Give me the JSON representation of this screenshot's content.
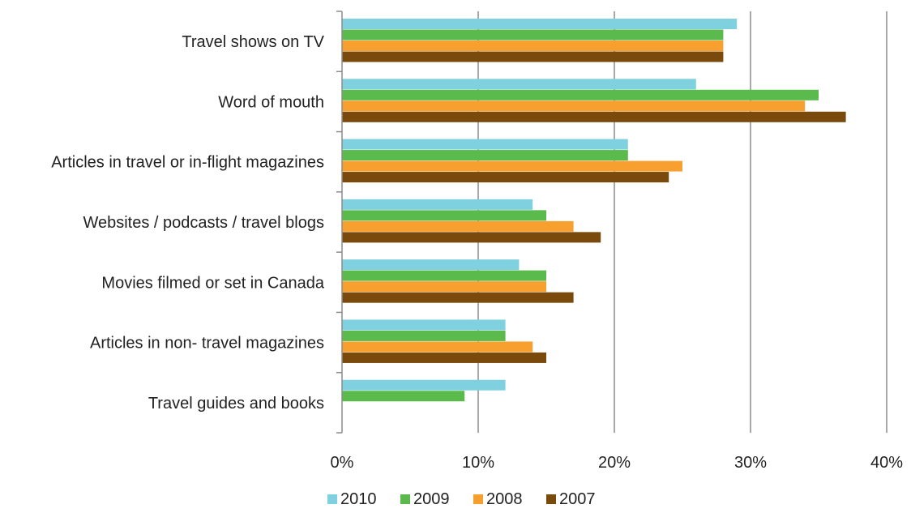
{
  "chart_data": {
    "type": "bar",
    "orientation": "horizontal",
    "categories": [
      "Travel shows on TV",
      "Word of mouth",
      "Articles in travel or in-flight magazines",
      "Websites / podcasts / travel blogs",
      "Movies filmed or set in Canada",
      "Articles in non- travel magazines",
      "Travel guides and books"
    ],
    "series": [
      {
        "name": "2010",
        "color": "#7fd1e0",
        "values": [
          29,
          26,
          21,
          14,
          13,
          12,
          12
        ]
      },
      {
        "name": "2009",
        "color": "#5aba4b",
        "values": [
          28,
          35,
          21,
          15,
          15,
          12,
          9
        ]
      },
      {
        "name": "2008",
        "color": "#f7a030",
        "values": [
          28,
          34,
          25,
          17,
          15,
          14,
          null
        ]
      },
      {
        "name": "2007",
        "color": "#7a4a0c",
        "values": [
          28,
          37,
          24,
          19,
          17,
          15,
          null
        ]
      }
    ],
    "x_ticks": [
      "0%",
      "10%",
      "20%",
      "30%",
      "40%"
    ],
    "xlim": [
      0,
      40
    ],
    "title": "",
    "xlabel": "",
    "ylabel": "",
    "grid": "vertical",
    "legend_position": "bottom"
  }
}
